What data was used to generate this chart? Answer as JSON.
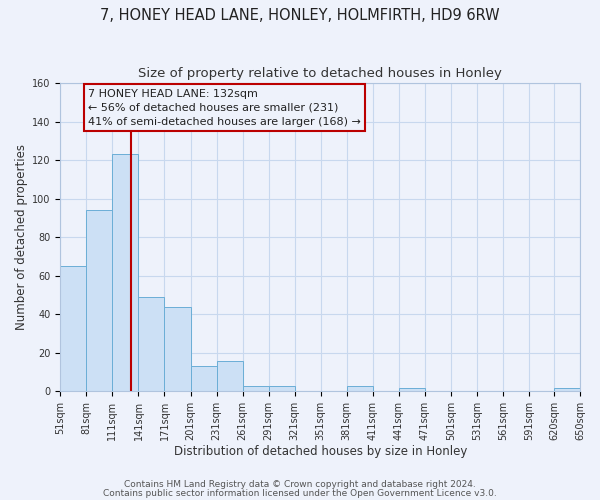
{
  "title": "7, HONEY HEAD LANE, HONLEY, HOLMFIRTH, HD9 6RW",
  "subtitle": "Size of property relative to detached houses in Honley",
  "xlabel": "Distribution of detached houses by size in Honley",
  "ylabel": "Number of detached properties",
  "bar_left_edges": [
    51,
    81,
    111,
    141,
    171,
    201,
    231,
    261,
    291,
    321,
    351,
    381,
    411,
    441,
    471,
    501,
    531,
    561,
    591,
    620
  ],
  "bar_heights": [
    65,
    94,
    123,
    49,
    44,
    13,
    16,
    3,
    3,
    0,
    0,
    3,
    0,
    2,
    0,
    0,
    0,
    0,
    0,
    2
  ],
  "bin_width": 30,
  "bar_facecolor": "#cce0f5",
  "bar_edgecolor": "#6baed6",
  "grid_color": "#c8d8ee",
  "background_color": "#eef2fb",
  "vline_x": 132,
  "vline_color": "#bb0000",
  "annotation_line1": "7 HONEY HEAD LANE: 132sqm",
  "annotation_line2": "← 56% of detached houses are smaller (231)",
  "annotation_line3": "41% of semi-detached houses are larger (168) →",
  "ylim": [
    0,
    160
  ],
  "yticks": [
    0,
    20,
    40,
    60,
    80,
    100,
    120,
    140,
    160
  ],
  "xtick_labels": [
    "51sqm",
    "81sqm",
    "111sqm",
    "141sqm",
    "171sqm",
    "201sqm",
    "231sqm",
    "261sqm",
    "291sqm",
    "321sqm",
    "351sqm",
    "381sqm",
    "411sqm",
    "441sqm",
    "471sqm",
    "501sqm",
    "531sqm",
    "561sqm",
    "591sqm",
    "620sqm",
    "650sqm"
  ],
  "footer_line1": "Contains HM Land Registry data © Crown copyright and database right 2024.",
  "footer_line2": "Contains public sector information licensed under the Open Government Licence v3.0.",
  "title_fontsize": 10.5,
  "subtitle_fontsize": 9.5,
  "axis_label_fontsize": 8.5,
  "tick_fontsize": 7,
  "annotation_fontsize": 8,
  "footer_fontsize": 6.5
}
